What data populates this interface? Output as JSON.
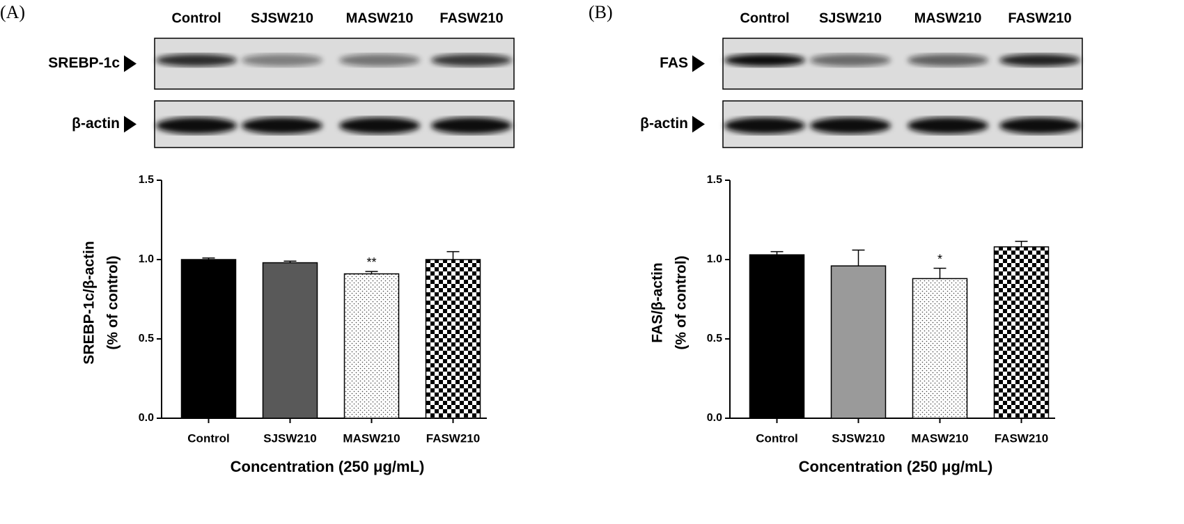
{
  "chart_data": [
    {
      "type": "bar",
      "panel": "(A)",
      "blot": {
        "lanes": [
          "Control",
          "SJSW210",
          "MASW210",
          "FASW210"
        ],
        "rows": [
          "SREBP-1c",
          "β-actin"
        ]
      },
      "ylabel": [
        "SREBP-1c/β-actin",
        "(% of control)"
      ],
      "xlabel": "Concentration (250 μg/mL)",
      "categories": [
        "Control",
        "SJSW210",
        "MASW210",
        "FASW210"
      ],
      "values": [
        1.0,
        0.98,
        0.91,
        1.0
      ],
      "errors": [
        0.01,
        0.01,
        0.015,
        0.05
      ],
      "significance": [
        null,
        null,
        "**",
        null
      ],
      "colors": [
        "#000000",
        "#595959",
        "#ffffff",
        "#000000"
      ],
      "patterns": [
        null,
        null,
        "dots",
        "checker"
      ],
      "ylim": [
        0,
        1.5
      ],
      "yticks": [
        {
          "value": 0,
          "label": "0.0"
        },
        {
          "value": 0.5,
          "label": "0.5"
        },
        {
          "value": 1,
          "label": "1.0"
        },
        {
          "value": 1.5,
          "label": "1.5"
        }
      ]
    },
    {
      "type": "bar",
      "panel": "(B)",
      "blot": {
        "lanes": [
          "Control",
          "SJSW210",
          "MASW210",
          "FASW210"
        ],
        "rows": [
          "FAS",
          "β-actin"
        ]
      },
      "ylabel": [
        "FAS/β-actin",
        "(% of control)"
      ],
      "xlabel": "Concentration (250 μg/mL)",
      "categories": [
        "Control",
        "SJSW210",
        "MASW210",
        "FASW210"
      ],
      "values": [
        1.03,
        0.96,
        0.88,
        1.08
      ],
      "errors": [
        0.02,
        0.1,
        0.065,
        0.035
      ],
      "significance": [
        null,
        null,
        "*",
        null
      ],
      "colors": [
        "#000000",
        "#9a9a9a",
        "#ffffff",
        "#000000"
      ],
      "patterns": [
        null,
        null,
        "dots",
        "checker"
      ],
      "ylim": [
        0,
        1.5
      ],
      "yticks": [
        {
          "value": 0,
          "label": "0.0"
        },
        {
          "value": 0.5,
          "label": "0.5"
        },
        {
          "value": 1,
          "label": "1.0"
        },
        {
          "value": 1.5,
          "label": "1.5"
        }
      ]
    }
  ]
}
